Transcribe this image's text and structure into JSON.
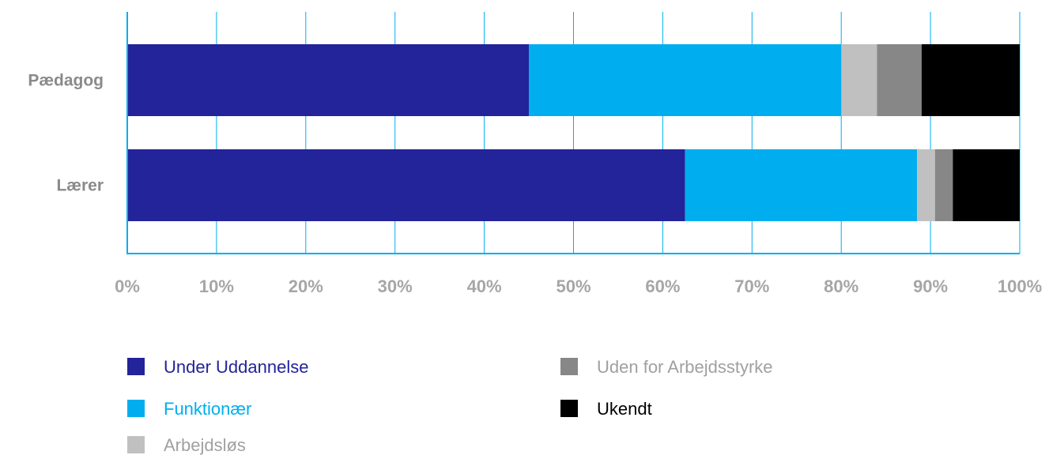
{
  "chart_data": {
    "type": "bar",
    "orientation": "horizontal",
    "stacked": true,
    "percent_stacked": true,
    "title": "",
    "xlabel": "",
    "ylabel": "",
    "xlim": [
      0,
      100
    ],
    "ticks": [
      "0%",
      "10%",
      "20%",
      "30%",
      "40%",
      "50%",
      "60%",
      "70%",
      "80%",
      "90%",
      "100%"
    ],
    "grid": true,
    "legend_position": "bottom",
    "categories": [
      "Pædagog",
      "Lærer"
    ],
    "series": [
      {
        "name": "Under Uddannelse",
        "color": "#23239a",
        "label_color": "#23239a",
        "values": [
          45,
          62.5
        ]
      },
      {
        "name": "Funktionær",
        "color": "#00aeef",
        "label_color": "#00aeef",
        "values": [
          35,
          26
        ]
      },
      {
        "name": "Arbejdsløs",
        "color": "#c0c0c0",
        "label_color": "#a0a0a0",
        "values": [
          4,
          2
        ]
      },
      {
        "name": "Uden for Arbejdsstyrke",
        "color": "#878787",
        "label_color": "#a0a0a0",
        "values": [
          5,
          2
        ]
      },
      {
        "name": "Ukendt",
        "color": "#000000",
        "label_color": "#000000",
        "values": [
          11,
          7.5
        ]
      }
    ],
    "gridline_color": "#00aeef",
    "axis_color": "#00aeef"
  }
}
